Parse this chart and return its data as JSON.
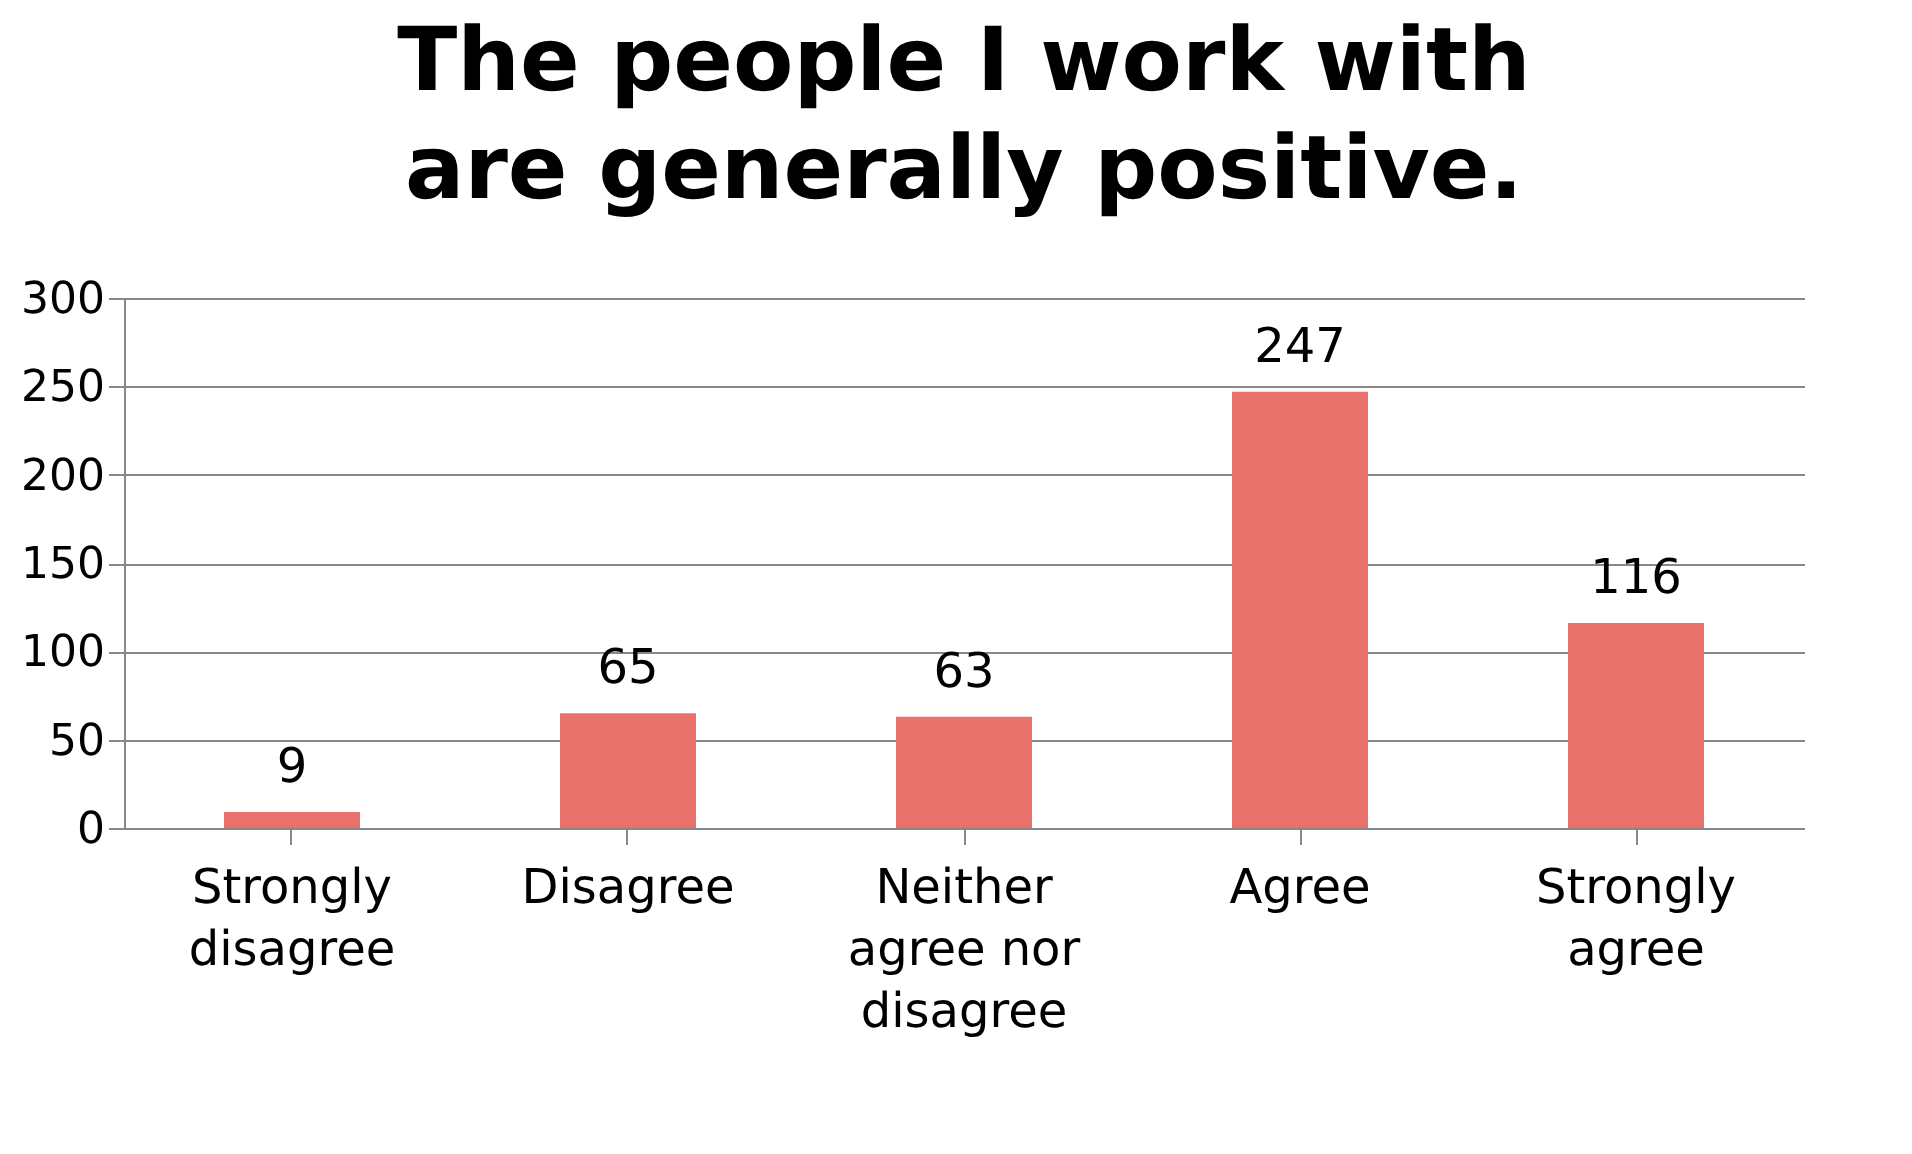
{
  "chart_data": {
    "type": "bar",
    "title": "The people I work with are generally positive.",
    "categories": [
      "Strongly disagree",
      "Disagree",
      "Neither agree nor disagree",
      "Agree",
      "Strongly agree"
    ],
    "values": [
      9,
      65,
      63,
      247,
      116
    ],
    "color": "#e8726b",
    "ylim": [
      0,
      300
    ],
    "yticks": [
      0,
      50,
      100,
      150,
      200,
      250,
      300
    ],
    "grid": "y",
    "data_labels": true
  }
}
